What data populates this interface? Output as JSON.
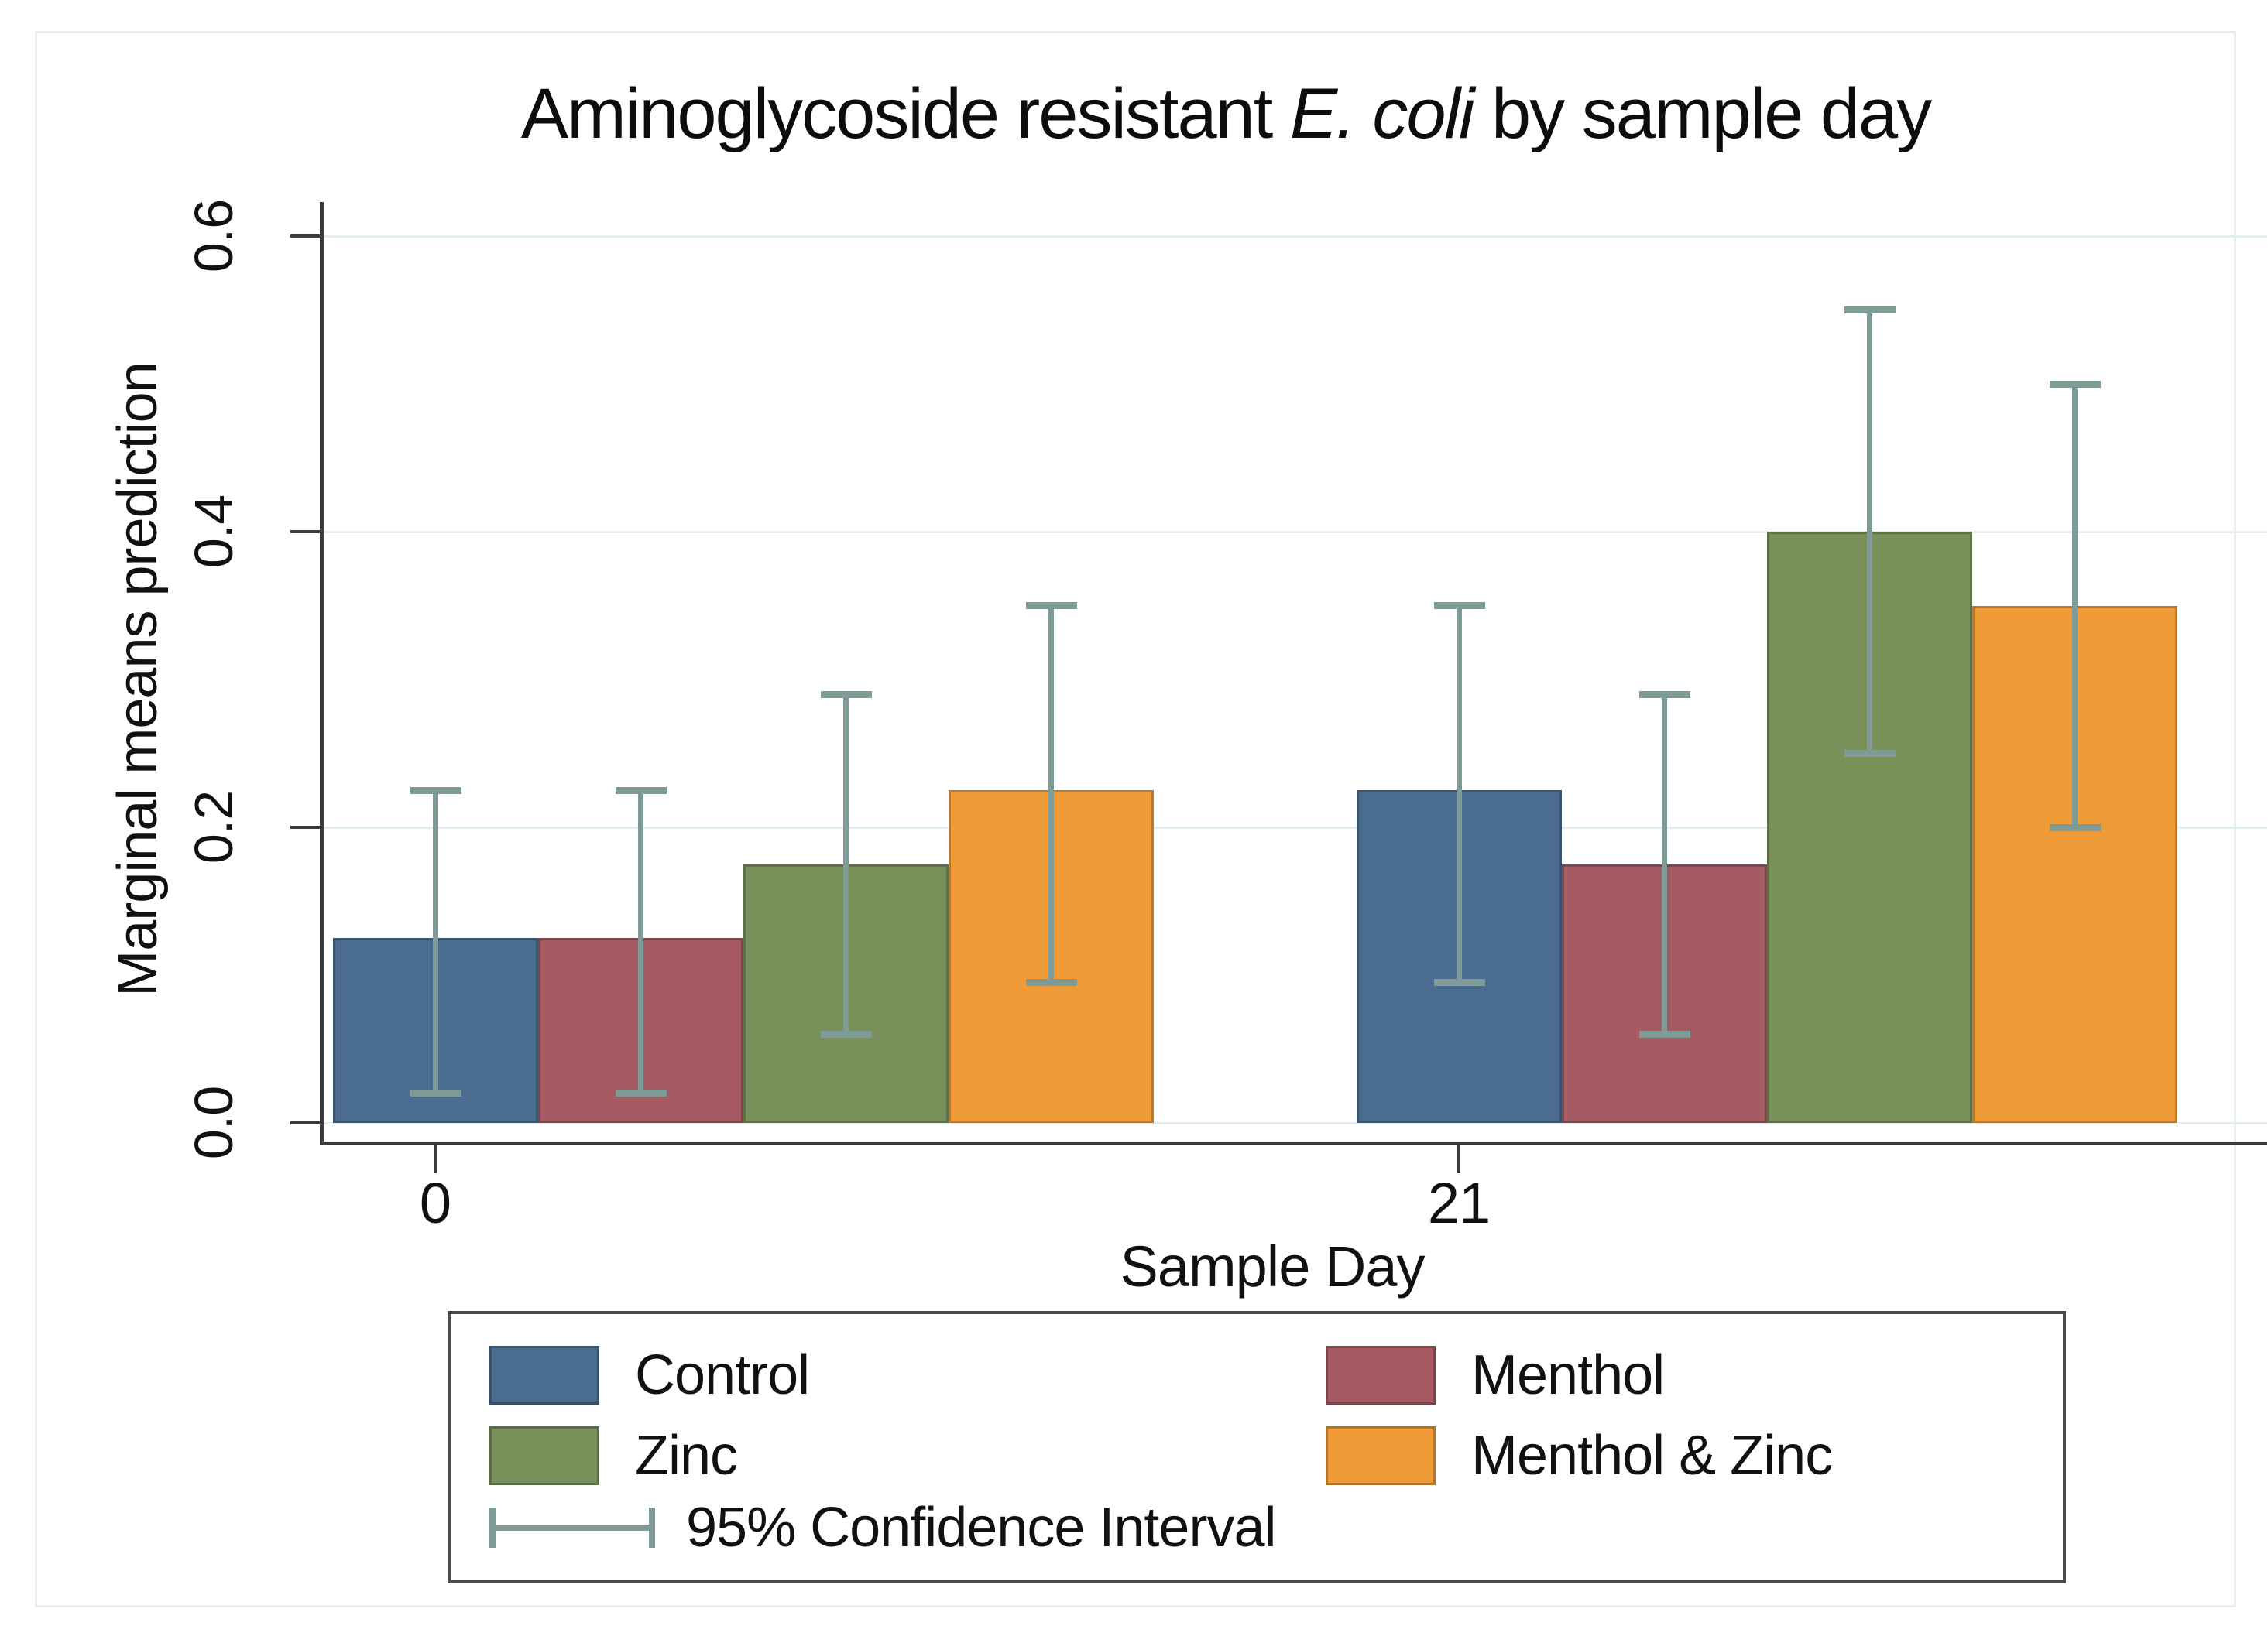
{
  "title": {
    "prefix": "Aminoglycoside resistant ",
    "italic_segment": "E. coli",
    "suffix": " by sample day",
    "full": "Aminoglycoside resistant E. coli by sample day"
  },
  "axes": {
    "y_title": "Marginal means prediction",
    "x_title": "Sample Day",
    "y_tick_labels": [
      "0.0",
      "0.2",
      "0.4",
      "0.6"
    ],
    "x_tick_labels": [
      "0",
      "21"
    ]
  },
  "legend": {
    "entries": [
      "Control",
      "Menthol",
      "Zinc",
      "Menthol & Zinc"
    ],
    "ci_label": "95% Confidence Interval"
  },
  "colors": {
    "background": "#ffffff",
    "figure_border": "#e7eff1",
    "gridline": "#e4eef0",
    "axis_line": "#3c3c3c",
    "text": "#111111",
    "error_bar": "#7f9b98",
    "legend_border": "#4b4b4b"
  },
  "chart_data": {
    "type": "bar",
    "title": "Aminoglycoside resistant E. coli by sample day",
    "xlabel": "Sample Day",
    "ylabel": "Marginal means prediction",
    "ylim": [
      0,
      0.6
    ],
    "y_tick_values": [
      0,
      0.2,
      0.4,
      0.6
    ],
    "grid": true,
    "legend_position": "bottom",
    "categories": [
      "0",
      "21"
    ],
    "series": [
      {
        "name": "Control",
        "color": "#4a6d8f",
        "values": [
          0.125,
          0.225
        ],
        "ci_low": [
          0.02,
          0.095
        ],
        "ci_high": [
          0.225,
          0.35
        ]
      },
      {
        "name": "Menthol",
        "color": "#a55b61",
        "values": [
          0.125,
          0.175
        ],
        "ci_low": [
          0.02,
          0.06
        ],
        "ci_high": [
          0.225,
          0.29
        ]
      },
      {
        "name": "Zinc",
        "color": "#79905a",
        "values": [
          0.175,
          0.4
        ],
        "ci_low": [
          0.06,
          0.25
        ],
        "ci_high": [
          0.29,
          0.55
        ]
      },
      {
        "name": "Menthol & Zinc",
        "color": "#ef9c38",
        "values": [
          0.225,
          0.35
        ],
        "ci_low": [
          0.095,
          0.2
        ],
        "ci_high": [
          0.35,
          0.5
        ]
      }
    ],
    "error_bars": {
      "label": "95% Confidence Interval",
      "color": "#7f9b98",
      "level": "95%"
    }
  }
}
